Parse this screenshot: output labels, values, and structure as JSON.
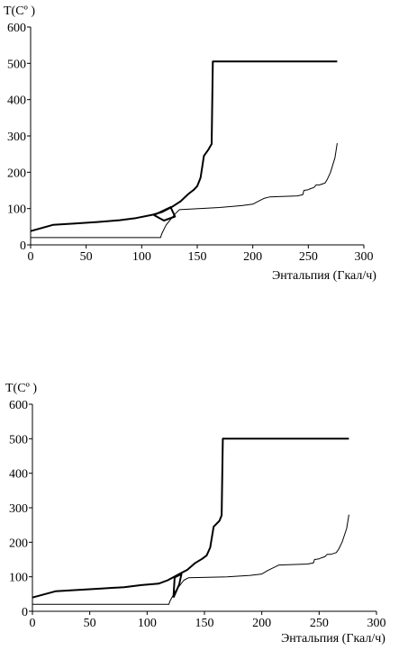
{
  "chart_data": [
    {
      "type": "line",
      "title": "",
      "ylabel": "T(Cº )",
      "xlabel": "Энтальпия (Гкал/ч)",
      "xlim": [
        0,
        300
      ],
      "ylim": [
        0,
        600
      ],
      "xticks": [
        "0",
        "50",
        "100",
        "150",
        "200",
        "250",
        "300"
      ],
      "yticks": [
        "0",
        "100",
        "200",
        "300",
        "400",
        "500",
        "600"
      ],
      "grid": false,
      "legend": "none",
      "series": [
        {
          "stroke": "#000000",
          "weight": "bold",
          "x": [
            0,
            20,
            40,
            60,
            80,
            95,
            110,
            118,
            128,
            135,
            142,
            147,
            150,
            153,
            156,
            160,
            163,
            164,
            164,
            276
          ],
          "y": [
            38,
            55,
            59,
            63,
            68,
            74,
            83,
            90,
            106,
            120,
            140,
            152,
            162,
            185,
            245,
            262,
            278,
            505,
            505,
            505
          ]
        },
        {
          "stroke": "#000000",
          "weight": "thin",
          "x": [
            0,
            117,
            118,
            122,
            130,
            134,
            170,
            190,
            200,
            205,
            210,
            215,
            240,
            245,
            246,
            250,
            252,
            255,
            257,
            260,
            265,
            267,
            270,
            274,
            276
          ],
          "y": [
            20,
            20,
            30,
            55,
            85,
            97,
            103,
            108,
            112,
            120,
            128,
            132,
            135,
            138,
            150,
            152,
            155,
            158,
            165,
            165,
            170,
            180,
            200,
            240,
            280
          ]
        },
        {
          "stroke": "#000000",
          "weight": "bold",
          "x": [
            111,
            126,
            130,
            120,
            111
          ],
          "y": [
            82,
            104,
            78,
            67,
            82
          ]
        }
      ]
    },
    {
      "type": "line",
      "title": "",
      "ylabel": "T(Cº )",
      "xlabel": "Энтальпия (Гкал/ч)",
      "xlim": [
        0,
        300
      ],
      "ylim": [
        0,
        600
      ],
      "xticks": [
        "0",
        "50",
        "100",
        "150",
        "200",
        "250",
        "300"
      ],
      "yticks": [
        "0",
        "100",
        "200",
        "300",
        "400",
        "500",
        "600"
      ],
      "grid": false,
      "legend": "none",
      "series": [
        {
          "stroke": "#000000",
          "weight": "bold",
          "x": [
            0,
            20,
            40,
            60,
            80,
            95,
            110,
            118,
            128,
            135,
            142,
            148,
            152,
            155,
            158,
            163,
            165,
            166,
            166,
            276
          ],
          "y": [
            40,
            58,
            62,
            66,
            70,
            76,
            80,
            90,
            108,
            120,
            140,
            152,
            162,
            185,
            245,
            262,
            278,
            500,
            500,
            500
          ]
        },
        {
          "stroke": "#000000",
          "weight": "thin",
          "x": [
            0,
            119,
            120,
            125,
            132,
            136,
            170,
            190,
            200,
            205,
            210,
            215,
            240,
            245,
            246,
            250,
            252,
            255,
            257,
            260,
            265,
            267,
            270,
            274,
            276
          ],
          "y": [
            20,
            20,
            30,
            60,
            90,
            97,
            100,
            104,
            108,
            118,
            126,
            134,
            137,
            140,
            150,
            152,
            155,
            158,
            165,
            165,
            170,
            180,
            200,
            240,
            280
          ]
        },
        {
          "stroke": "#000000",
          "weight": "bold",
          "x": [
            123,
            128,
            130,
            124,
            123
          ],
          "y": [
            40,
            78,
            108,
            98,
            40
          ]
        }
      ]
    }
  ]
}
